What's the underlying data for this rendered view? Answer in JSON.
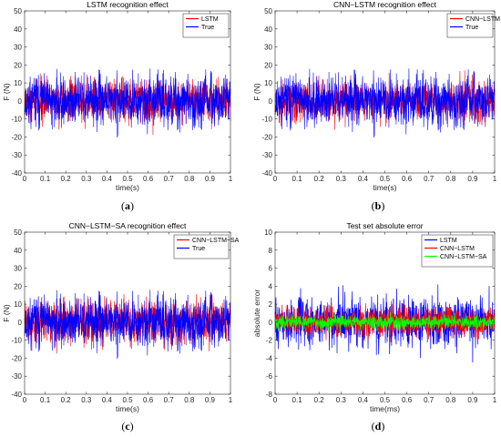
{
  "panels": [
    {
      "letter": "a"
    },
    {
      "letter": "b"
    },
    {
      "letter": "c"
    },
    {
      "letter": "d"
    }
  ],
  "chart_data": [
    {
      "type": "line",
      "title": "LSTM recognition effect",
      "xlabel": "time(s)",
      "ylabel": "F (N)",
      "xlim": [
        0,
        1
      ],
      "ylim": [
        -40,
        50
      ],
      "xticks": [
        "0",
        "0.1",
        "0.2",
        "0.3",
        "0.4",
        "0.5",
        "0.6",
        "0.7",
        "0.8",
        "0.9",
        "1"
      ],
      "yticks": [
        "-40",
        "-30",
        "-20",
        "-10",
        "0",
        "10",
        "20",
        "30",
        "40",
        "50"
      ],
      "legend_position": "top-right",
      "grid": false,
      "series": [
        {
          "name": "LSTM",
          "color": "#ff0000",
          "description": "noise signal, amplitude about ±20 N, almost fully hidden beneath True"
        },
        {
          "name": "True",
          "color": "#0000ff",
          "description": "noise signal, mostly within ±20 N, peaks to about 34 N and -33 N"
        }
      ]
    },
    {
      "type": "line",
      "title": "CNN−LSTM recognition effect",
      "xlabel": "time(s)",
      "ylabel": "F (N)",
      "xlim": [
        0,
        1
      ],
      "ylim": [
        -40,
        50
      ],
      "xticks": [
        "0",
        "0.1",
        "0.2",
        "0.3",
        "0.4",
        "0.5",
        "0.6",
        "0.7",
        "0.8",
        "0.9",
        "1"
      ],
      "yticks": [
        "-40",
        "-30",
        "-20",
        "-10",
        "0",
        "10",
        "20",
        "30",
        "40",
        "50"
      ],
      "legend_position": "top-right",
      "grid": false,
      "series": [
        {
          "name": "CNN−LSTM",
          "color": "#ff0000"
        },
        {
          "name": "True",
          "color": "#0000ff"
        }
      ]
    },
    {
      "type": "line",
      "title": "CNN−LSTM−SA recognition effect",
      "xlabel": "time(s)",
      "ylabel": "F (N)",
      "xlim": [
        0,
        1
      ],
      "ylim": [
        -40,
        50
      ],
      "xticks": [
        "0",
        "0.1",
        "0.2",
        "0.3",
        "0.4",
        "0.5",
        "0.6",
        "0.7",
        "0.8",
        "0.9",
        "1"
      ],
      "yticks": [
        "-40",
        "-30",
        "-20",
        "-10",
        "0",
        "10",
        "20",
        "30",
        "40",
        "50"
      ],
      "legend_position": "top-right",
      "grid": false,
      "series": [
        {
          "name": "CNN−LSTM−SA",
          "color": "#ff0000"
        },
        {
          "name": "True",
          "color": "#0000ff"
        }
      ]
    },
    {
      "type": "line",
      "title": "Test set absolute error",
      "xlabel": "time(ms)",
      "ylabel": "absolute error",
      "xlim": [
        0,
        1
      ],
      "ylim": [
        -8,
        10
      ],
      "xticks": [
        "0",
        "0.1",
        "0.2",
        "0.3",
        "0.4",
        "0.5",
        "0.6",
        "0.7",
        "0.8",
        "0.9",
        "1"
      ],
      "yticks": [
        "-8",
        "-6",
        "-4",
        "-2",
        "0",
        "2",
        "4",
        "6",
        "8",
        "10"
      ],
      "legend_position": "top-right",
      "grid": false,
      "series": [
        {
          "name": "LSTM",
          "color": "#0000ff"
        },
        {
          "name": "CNN−LSTM",
          "color": "#ff0000"
        },
        {
          "name": "CNN−LSTM−SA",
          "color": "#00ff00"
        }
      ]
    }
  ]
}
